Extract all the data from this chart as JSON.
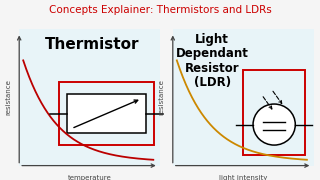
{
  "title": "Concepts Explainer: Thermistors and LDRs",
  "title_color": "#cc0000",
  "title_fontsize": 7.5,
  "bg_color": "#f5f5f5",
  "panel_bg": "#e8f4f8",
  "left_label": "Thermistor",
  "right_label_lines": [
    "Light",
    "Dependant",
    "Resistor",
    "(LDR)"
  ],
  "left_xlabel": "temperature",
  "right_xlabel": "light intensity",
  "ylabel": "resistance",
  "curve_color_left": "#bb0000",
  "curve_color_right": "#cc8800",
  "rect_color": "#cc0000",
  "axis_color": "#444444"
}
